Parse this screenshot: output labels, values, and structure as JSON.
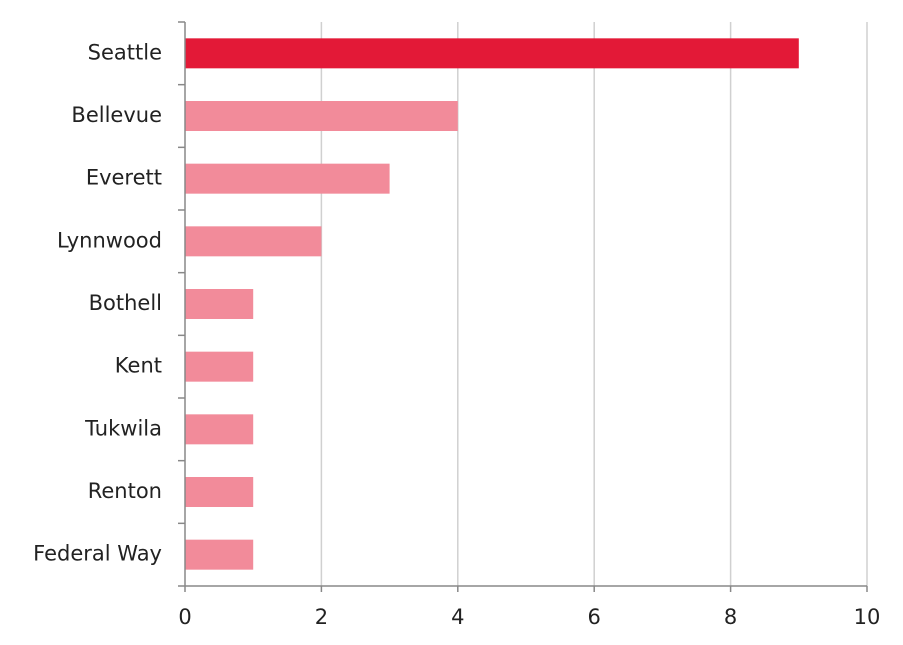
{
  "chart_data": {
    "type": "bar",
    "orientation": "horizontal",
    "categories": [
      "Seattle",
      "Bellevue",
      "Everett",
      "Lynnwood",
      "Bothell",
      "Kent",
      "Tukwila",
      "Renton",
      "Federal Way"
    ],
    "values": [
      9,
      4,
      3,
      2,
      1,
      1,
      1,
      1,
      1
    ],
    "colors": [
      "#e31937",
      "#f28b9a",
      "#f28b9a",
      "#f28b9a",
      "#f28b9a",
      "#f28b9a",
      "#f28b9a",
      "#f28b9a",
      "#f28b9a"
    ],
    "xlim": [
      0,
      10
    ],
    "xticks": [
      0,
      2,
      4,
      6,
      8,
      10
    ],
    "grid": true
  }
}
